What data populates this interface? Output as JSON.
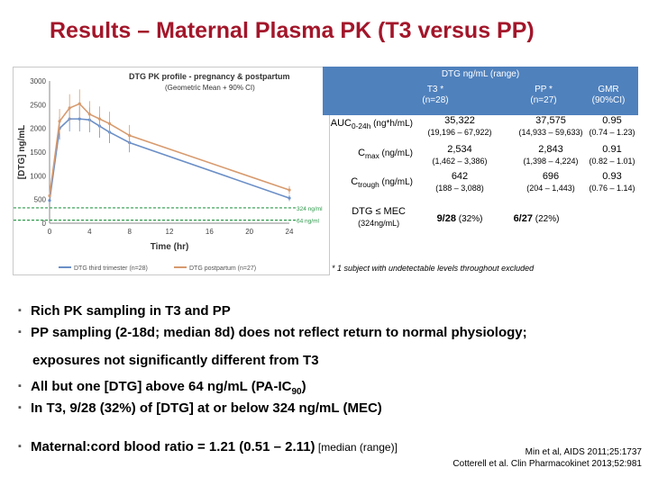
{
  "slide": {
    "title": "Results – Maternal Plasma PK (T3 versus PP)"
  },
  "chart_data": {
    "type": "line",
    "title": "DTG PK profile - pregnancy & postpartum",
    "subtitle": "(Geometric Mean + 90% CI)",
    "xlabel": "Time (hr)",
    "ylabel": "[DTG] ng/mL",
    "xlim": [
      0,
      24
    ],
    "ylim": [
      0,
      3000
    ],
    "xticks": [
      "0",
      "4",
      "8",
      "12",
      "16",
      "20",
      "24"
    ],
    "yticks": [
      "0",
      "500",
      "1000",
      "1500",
      "2000",
      "2500",
      "3000"
    ],
    "x": [
      0,
      1,
      2,
      3,
      4,
      5,
      6,
      8,
      24
    ],
    "series": [
      {
        "name": "DTG third trimester (n=28)",
        "color": "#6b8fc7",
        "values": [
          480,
          2000,
          2200,
          2200,
          2180,
          2050,
          1920,
          1700,
          530
        ]
      },
      {
        "name": "DTG postpartum (n=27)",
        "color": "#d79a6e",
        "values": [
          580,
          2150,
          2430,
          2520,
          2300,
          2200,
          2100,
          1850,
          700
        ]
      }
    ],
    "reference_lines": [
      {
        "label": "324 ng/ml",
        "value": 324
      },
      {
        "label": "64 ng/ml",
        "value": 64
      }
    ],
    "legend": "bottom"
  },
  "pk_table": {
    "header": "DTG ng/mL (range)",
    "columns": [
      {
        "name": "T3 *",
        "sub": "(n=28)"
      },
      {
        "name": "PP *",
        "sub": "(n=27)"
      },
      {
        "name": "GMR",
        "sub": "(90%CI)"
      }
    ],
    "rows": [
      {
        "label_main": "AUC",
        "label_sub": "0-24h",
        "label_unit": " (ng*h/mL)",
        "t3": "35,322",
        "t3_range": "(19,196 – 67,922)",
        "pp": "37,575",
        "pp_range": "(14,933 – 59,633)",
        "gmr": "0.95",
        "gmr_ci": "(0.74 – 1.23)"
      },
      {
        "label_main": "C",
        "label_sub": "max",
        "label_unit": " (ng/mL)",
        "t3": "2,534",
        "t3_range": "(1,462 – 3,386)",
        "pp": "2,843",
        "pp_range": "(1,398 – 4,224)",
        "gmr": "0.91",
        "gmr_ci": "(0.82 – 1.01)"
      },
      {
        "label_main": "C",
        "label_sub": "trough",
        "label_unit": " (ng/mL)",
        "t3": "642",
        "t3_range": "(188 – 3,088)",
        "pp": "696",
        "pp_range": "(204 – 1,443)",
        "gmr": "0.93",
        "gmr_ci": "(0.76 – 1.14)"
      }
    ],
    "mec_row": {
      "label_main": "DTG ≤ MEC",
      "label_unit": "(324ng/mL)",
      "t3": "9/28",
      "t3_pct": " (32%)",
      "pp": "6/27",
      "pp_pct": " (22%)"
    },
    "footnote": "* 1 subject with undetectable levels throughout excluded"
  },
  "bullets": [
    {
      "text": "Rich PK sampling in T3 and PP"
    },
    {
      "text": "PP sampling (2-18d; median 8d) does not reflect return to normal physiology;",
      "cont": "exposures not significantly different from T3"
    },
    {
      "text": "All but one [DTG] above 64 ng/mL (PA-IC",
      "sub": "90",
      "tail": ")"
    },
    {
      "text": "In T3, 9/28 (32%) of [DTG] at or below 324 ng/mL (MEC)"
    },
    {
      "text": "Maternal:cord blood ratio = 1.21 (0.51 – 2.11)",
      "small": " [median (range)]"
    }
  ],
  "references": [
    "Min et al, AIDS 2011;25:1737",
    "Cotterell et al. Clin Pharmacokinet 2013;52:981"
  ]
}
